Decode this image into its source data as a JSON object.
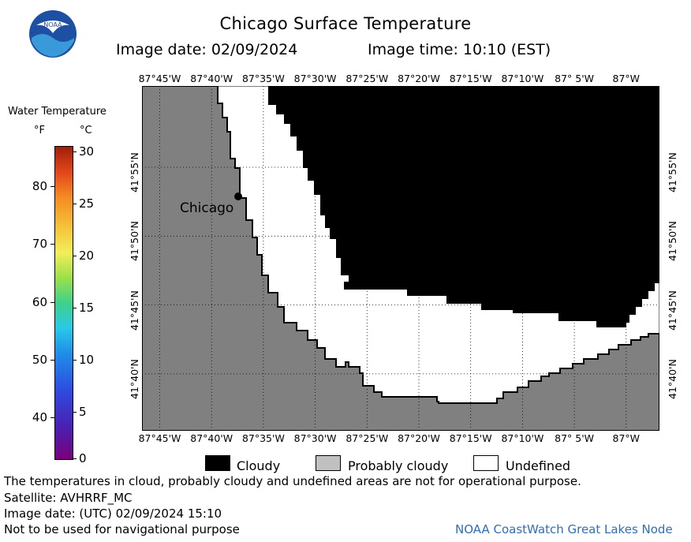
{
  "header": {
    "title": "Chicago Surface Temperature",
    "image_date": "Image date: 02/09/2024",
    "image_time": "Image time: 10:10 (EST)",
    "logo_text": "NOAA"
  },
  "legend": {
    "title": "Water Temperature",
    "unit_f": "°F",
    "unit_c": "°C",
    "f_ticks": [
      "80",
      "70",
      "60",
      "50",
      "40"
    ],
    "c_ticks": [
      "30",
      "25",
      "20",
      "15",
      "10",
      "5",
      "0"
    ]
  },
  "map": {
    "lon_labels": [
      "87°45'W",
      "87°40'W",
      "87°35'W",
      "87°30'W",
      "87°25'W",
      "87°20'W",
      "87°15'W",
      "87°10'W",
      "87° 5'W",
      "87°W"
    ],
    "lat_labels": [
      "41°55'N",
      "41°50'N",
      "41°45'N",
      "41°40'N"
    ],
    "city_label": "Chicago",
    "colors": {
      "land": "#808080",
      "cloudy": "#000000",
      "undefined": "#ffffff",
      "probably_cloudy": "#c0c0c0"
    }
  },
  "key": {
    "cloudy": "Cloudy",
    "probably_cloudy": "Probably cloudy",
    "undefined": "Undefined"
  },
  "footer": {
    "note": "The temperatures in cloud, probably cloudy and undefined areas are not for operational purpose.",
    "satellite": "Satellite: AVHRRF_MC",
    "utc_date": "Image date: (UTC) 02/09/2024  15:10",
    "nav_warning": "Not to be used for navigational purpose",
    "credit": "NOAA CoastWatch Great Lakes Node"
  }
}
